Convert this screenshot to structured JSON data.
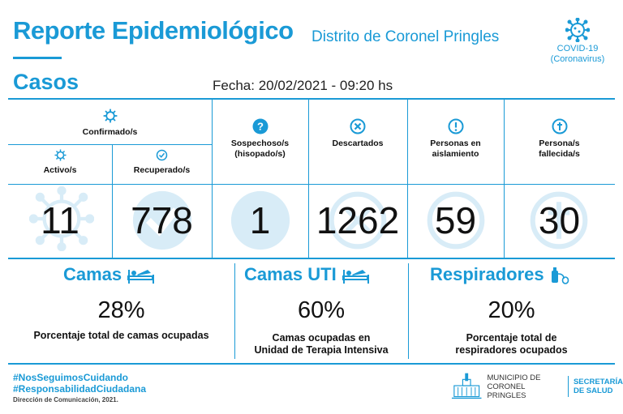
{
  "header": {
    "title": "Reporte Epidemiológico",
    "subtitle": "Distrito de Coronel Pringles",
    "covid_line1": "COVID-19",
    "covid_line2": "(Coronavirus)",
    "section": "Casos",
    "fecha": "Fecha: 20/02/2021 - 09:20 hs"
  },
  "cases": {
    "confirmados_label": "Confirmado/s",
    "activos": {
      "label": "Activo/s",
      "value": "11"
    },
    "recuperados": {
      "label": "Recuperado/s",
      "value": "778"
    },
    "sospechosos": {
      "label_1": "Sospechoso/s",
      "label_2": "(hisopado/s)",
      "value": "1"
    },
    "descartados": {
      "label": "Descartados",
      "value": "1262"
    },
    "aislamiento": {
      "label_1": "Personas en",
      "label_2": "aislamiento",
      "value": "59"
    },
    "fallecidos": {
      "label_1": "Persona/s",
      "label_2": "fallecida/s",
      "value": "30"
    }
  },
  "resources": {
    "camas": {
      "title": "Camas",
      "pct": "28%",
      "desc_1": "Porcentaje total de camas ocupadas"
    },
    "uti": {
      "title": "Camas UTI",
      "pct": "60%",
      "desc_1": "Camas ocupadas en",
      "desc_2": "Unidad de Terapia Intensiva"
    },
    "respiradores": {
      "title": "Respiradores",
      "pct": "20%",
      "desc_1": "Porcentaje total de",
      "desc_2": "respiradores ocupados"
    }
  },
  "footer": {
    "hashtag_1": "#NosSeguimosCuidando",
    "hashtag_2": "#ResponsabilidadCiudadana",
    "direccion": "Dirección de Comunicación, 2021.",
    "muni_1": "MUNICIPIO DE",
    "muni_2": "CORONEL PRINGLES",
    "sec_1": "SECRETARÍA",
    "sec_2": "DE SALUD"
  },
  "colors": {
    "accent": "#1a9ad6",
    "ghost": "#d8ecf7"
  },
  "icons": [
    "virus-icon",
    "check-circle-icon",
    "question-circle-icon",
    "x-circle-icon",
    "exclamation-circle-icon",
    "cross-circle-icon",
    "bed-icon",
    "respirator-icon",
    "building-icon"
  ]
}
